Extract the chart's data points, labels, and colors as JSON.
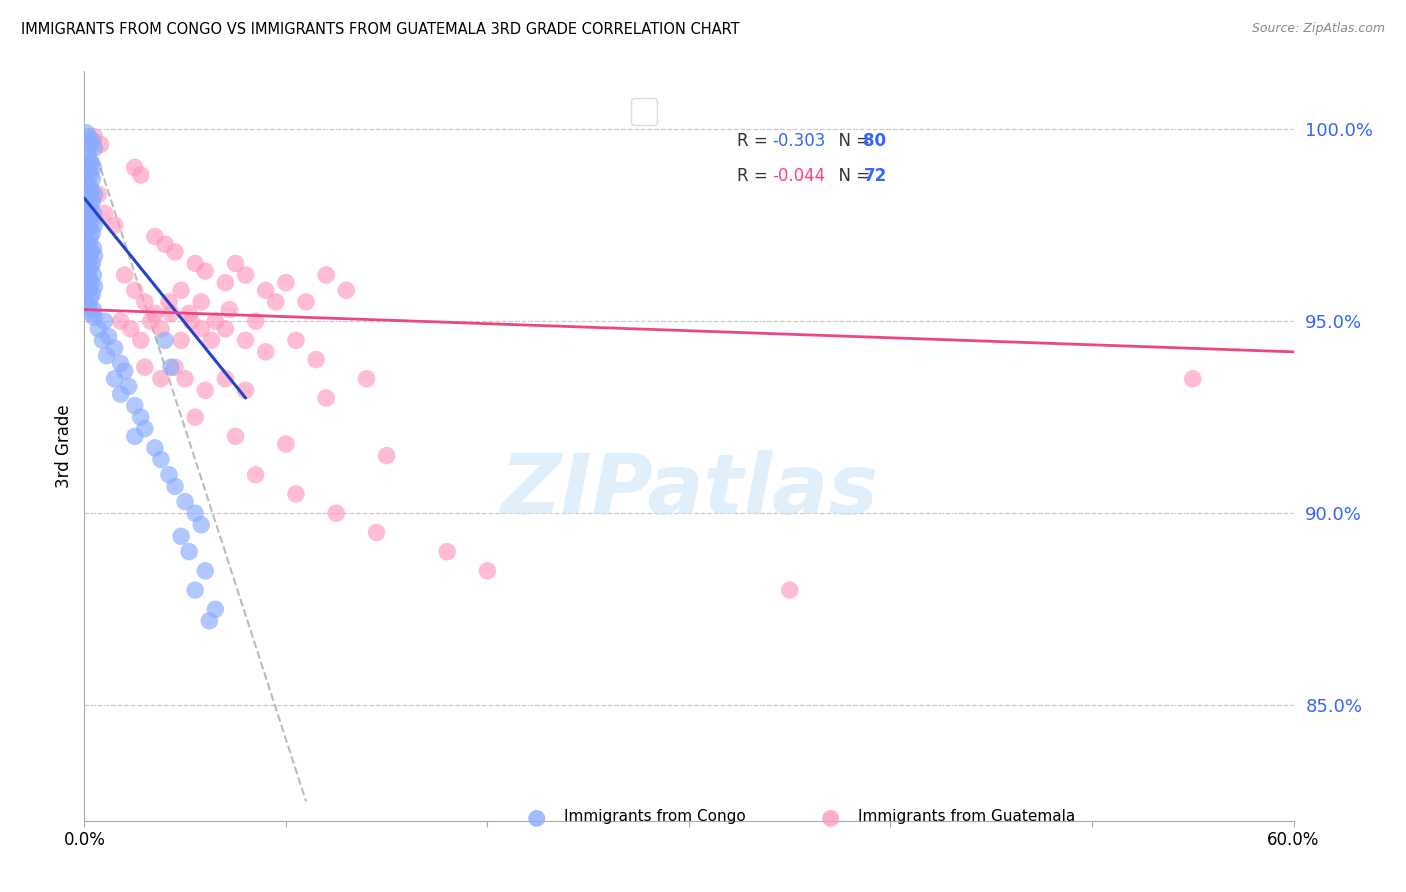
{
  "title": "IMMIGRANTS FROM CONGO VS IMMIGRANTS FROM GUATEMALA 3RD GRADE CORRELATION CHART",
  "source": "Source: ZipAtlas.com",
  "ylabel": "3rd Grade",
  "right_yticks": [
    85.0,
    90.0,
    95.0,
    100.0
  ],
  "watermark": "ZIPatlas",
  "congo_scatter": [
    [
      0.1,
      99.9
    ],
    [
      0.2,
      99.8
    ],
    [
      0.4,
      99.7
    ],
    [
      0.3,
      99.6
    ],
    [
      0.5,
      99.5
    ],
    [
      0.15,
      99.3
    ],
    [
      0.25,
      99.2
    ],
    [
      0.35,
      99.1
    ],
    [
      0.45,
      99.0
    ],
    [
      0.2,
      98.9
    ],
    [
      0.3,
      98.8
    ],
    [
      0.4,
      98.7
    ],
    [
      0.1,
      98.6
    ],
    [
      0.25,
      98.5
    ],
    [
      0.35,
      98.4
    ],
    [
      0.5,
      98.3
    ],
    [
      0.2,
      98.2
    ],
    [
      0.4,
      98.1
    ],
    [
      0.3,
      98.0
    ],
    [
      0.15,
      97.9
    ],
    [
      0.45,
      97.8
    ],
    [
      0.25,
      97.7
    ],
    [
      0.35,
      97.6
    ],
    [
      0.5,
      97.5
    ],
    [
      0.2,
      97.4
    ],
    [
      0.4,
      97.3
    ],
    [
      0.3,
      97.2
    ],
    [
      0.1,
      97.1
    ],
    [
      0.25,
      97.0
    ],
    [
      0.45,
      96.9
    ],
    [
      0.35,
      96.8
    ],
    [
      0.5,
      96.7
    ],
    [
      0.2,
      96.6
    ],
    [
      0.4,
      96.5
    ],
    [
      0.3,
      96.4
    ],
    [
      0.15,
      96.3
    ],
    [
      0.45,
      96.2
    ],
    [
      0.25,
      96.1
    ],
    [
      0.35,
      96.0
    ],
    [
      0.5,
      95.9
    ],
    [
      0.2,
      95.8
    ],
    [
      0.4,
      95.7
    ],
    [
      0.3,
      95.6
    ],
    [
      0.1,
      95.5
    ],
    [
      0.25,
      95.4
    ],
    [
      0.45,
      95.3
    ],
    [
      0.35,
      95.2
    ],
    [
      0.5,
      95.1
    ],
    [
      1.0,
      95.0
    ],
    [
      0.7,
      94.8
    ],
    [
      1.2,
      94.6
    ],
    [
      0.9,
      94.5
    ],
    [
      1.5,
      94.3
    ],
    [
      1.1,
      94.1
    ],
    [
      1.8,
      93.9
    ],
    [
      2.0,
      93.7
    ],
    [
      1.5,
      93.5
    ],
    [
      2.2,
      93.3
    ],
    [
      1.8,
      93.1
    ],
    [
      2.5,
      92.8
    ],
    [
      2.8,
      92.5
    ],
    [
      3.0,
      92.2
    ],
    [
      2.5,
      92.0
    ],
    [
      3.5,
      91.7
    ],
    [
      3.8,
      91.4
    ],
    [
      4.2,
      91.0
    ],
    [
      4.5,
      90.7
    ],
    [
      5.0,
      90.3
    ],
    [
      5.5,
      90.0
    ],
    [
      5.8,
      89.7
    ],
    [
      4.8,
      89.4
    ],
    [
      5.2,
      89.0
    ],
    [
      6.0,
      88.5
    ],
    [
      5.5,
      88.0
    ],
    [
      6.5,
      87.5
    ],
    [
      6.2,
      87.2
    ],
    [
      4.0,
      94.5
    ],
    [
      4.3,
      93.8
    ]
  ],
  "guatemala_scatter": [
    [
      0.5,
      99.8
    ],
    [
      0.8,
      99.6
    ],
    [
      2.5,
      99.0
    ],
    [
      2.8,
      98.8
    ],
    [
      0.7,
      98.3
    ],
    [
      1.0,
      97.8
    ],
    [
      1.5,
      97.5
    ],
    [
      3.5,
      97.2
    ],
    [
      4.0,
      97.0
    ],
    [
      4.5,
      96.8
    ],
    [
      5.5,
      96.5
    ],
    [
      6.0,
      96.3
    ],
    [
      7.0,
      96.0
    ],
    [
      7.5,
      96.5
    ],
    [
      8.0,
      96.2
    ],
    [
      9.0,
      95.8
    ],
    [
      10.0,
      96.0
    ],
    [
      11.0,
      95.5
    ],
    [
      12.0,
      96.2
    ],
    [
      13.0,
      95.8
    ],
    [
      2.0,
      96.2
    ],
    [
      2.5,
      95.8
    ],
    [
      3.0,
      95.5
    ],
    [
      3.5,
      95.2
    ],
    [
      4.2,
      95.5
    ],
    [
      4.8,
      95.8
    ],
    [
      5.2,
      95.2
    ],
    [
      5.8,
      95.5
    ],
    [
      6.5,
      95.0
    ],
    [
      7.2,
      95.3
    ],
    [
      8.5,
      95.0
    ],
    [
      9.5,
      95.5
    ],
    [
      1.8,
      95.0
    ],
    [
      2.3,
      94.8
    ],
    [
      2.8,
      94.5
    ],
    [
      3.3,
      95.0
    ],
    [
      3.8,
      94.8
    ],
    [
      4.3,
      95.2
    ],
    [
      4.8,
      94.5
    ],
    [
      5.3,
      95.0
    ],
    [
      5.8,
      94.8
    ],
    [
      6.3,
      94.5
    ],
    [
      7.0,
      94.8
    ],
    [
      8.0,
      94.5
    ],
    [
      9.0,
      94.2
    ],
    [
      10.5,
      94.5
    ],
    [
      11.5,
      94.0
    ],
    [
      3.0,
      93.8
    ],
    [
      3.8,
      93.5
    ],
    [
      4.5,
      93.8
    ],
    [
      5.0,
      93.5
    ],
    [
      6.0,
      93.2
    ],
    [
      7.0,
      93.5
    ],
    [
      8.0,
      93.2
    ],
    [
      12.0,
      93.0
    ],
    [
      14.0,
      93.5
    ],
    [
      5.5,
      92.5
    ],
    [
      7.5,
      92.0
    ],
    [
      10.0,
      91.8
    ],
    [
      15.0,
      91.5
    ],
    [
      8.5,
      91.0
    ],
    [
      10.5,
      90.5
    ],
    [
      12.5,
      90.0
    ],
    [
      14.5,
      89.5
    ],
    [
      18.0,
      89.0
    ],
    [
      20.0,
      88.5
    ],
    [
      35.0,
      88.0
    ],
    [
      55.0,
      93.5
    ]
  ],
  "congo_trend": [
    0.0,
    98.2,
    8.0,
    93.0
  ],
  "guatemala_trend": [
    0.0,
    95.3,
    60.0,
    94.2
  ],
  "diag_line": [
    0.3,
    99.8,
    11.0,
    82.5
  ],
  "xmin": 0.0,
  "xmax": 60.0,
  "ymin": 82.0,
  "ymax": 101.5,
  "blue_fill": "#aabbff",
  "blue_scatter": "#88aaff",
  "pink_fill": "#ffaabb",
  "pink_scatter": "#ff99bb",
  "blue_line": "#2244cc",
  "pink_line": "#ee4488",
  "right_tick_color": "#3366ff",
  "legend_r_color": "#333333",
  "legend_val_blue": "#3366ff",
  "legend_val_pink": "#ff4477"
}
